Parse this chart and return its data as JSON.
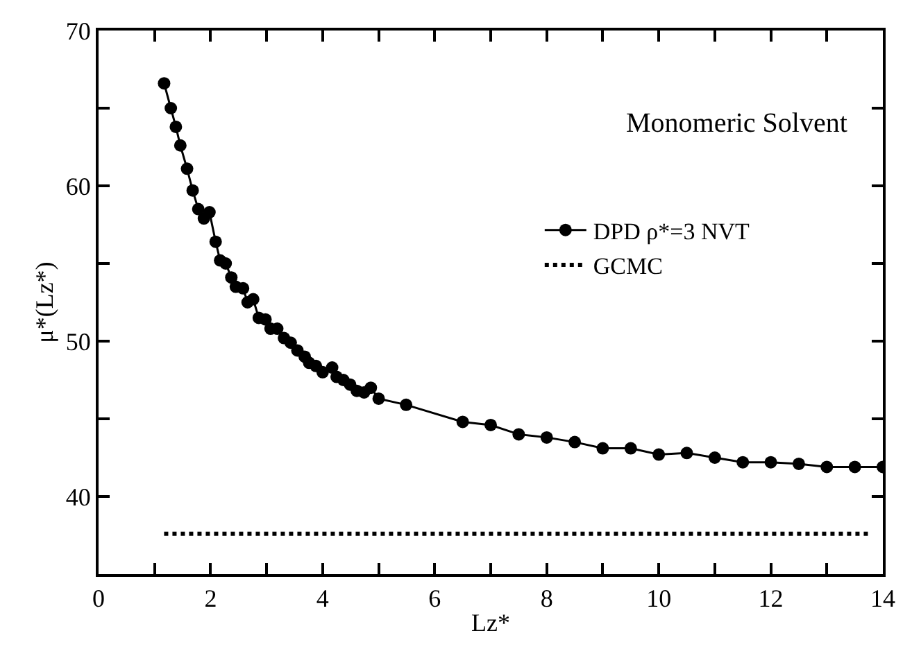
{
  "chart_data": {
    "type": "line",
    "xlabel": "Lz*",
    "ylabel": "μ*(Lz*)",
    "annotations": [
      "Monomeric Solvent"
    ],
    "xlim": [
      0,
      14
    ],
    "ylim": [
      35,
      70
    ],
    "xticks": [
      0,
      {
        "value": 1,
        "label": null
      },
      2,
      {
        "value": 3,
        "label": null
      },
      4,
      {
        "value": 5,
        "label": null
      },
      6,
      {
        "value": 7,
        "label": null
      },
      8,
      {
        "value": 9,
        "label": null
      },
      10,
      {
        "value": 11,
        "label": null
      },
      12,
      {
        "value": 13,
        "label": null
      },
      14
    ],
    "yticks": [
      {
        "value": 35,
        "label": null
      },
      40,
      {
        "value": 45,
        "label": null
      },
      50,
      {
        "value": 55,
        "label": null
      },
      60,
      {
        "value": 65,
        "label": null
      },
      70
    ],
    "grid": false,
    "legend": "right",
    "series": [
      {
        "name": "DPD ρ*=3 NVT",
        "color": "#000000",
        "marker": "circle",
        "line_style": "solid",
        "x": [
          1.17,
          1.29,
          1.38,
          1.46,
          1.58,
          1.68,
          1.78,
          1.88,
          1.98,
          2.09,
          2.17,
          2.27,
          2.37,
          2.45,
          2.58,
          2.66,
          2.76,
          2.86,
          2.98,
          3.07,
          3.19,
          3.31,
          3.43,
          3.55,
          3.68,
          3.76,
          3.88,
          4.0,
          4.17,
          4.25,
          4.37,
          4.49,
          4.61,
          4.74,
          4.86,
          5.0,
          5.49,
          6.5,
          7.0,
          7.5,
          8.0,
          8.5,
          9.0,
          9.5,
          10.0,
          10.5,
          11.0,
          11.5,
          12.0,
          12.5,
          13.0,
          13.5,
          14.0
        ],
        "values": [
          66.6,
          65.0,
          63.8,
          62.6,
          61.1,
          59.7,
          58.5,
          57.9,
          58.3,
          56.4,
          55.2,
          55.0,
          54.1,
          53.5,
          53.4,
          52.5,
          52.7,
          51.5,
          51.4,
          50.8,
          50.8,
          50.2,
          49.9,
          49.4,
          49.0,
          48.6,
          48.4,
          48.0,
          48.3,
          47.7,
          47.5,
          47.2,
          46.8,
          46.7,
          47.0,
          46.3,
          45.9,
          44.8,
          44.6,
          44.0,
          43.8,
          43.5,
          43.1,
          43.1,
          42.7,
          42.8,
          42.5,
          42.2,
          42.2,
          42.1,
          41.9,
          41.9,
          41.9
        ]
      },
      {
        "name": "GCMC",
        "type": "line",
        "color": "#000000",
        "marker": "none",
        "line_style": "dotted",
        "x": [
          1.17,
          13.8
        ],
        "values": [
          37.6,
          37.6
        ]
      }
    ]
  }
}
